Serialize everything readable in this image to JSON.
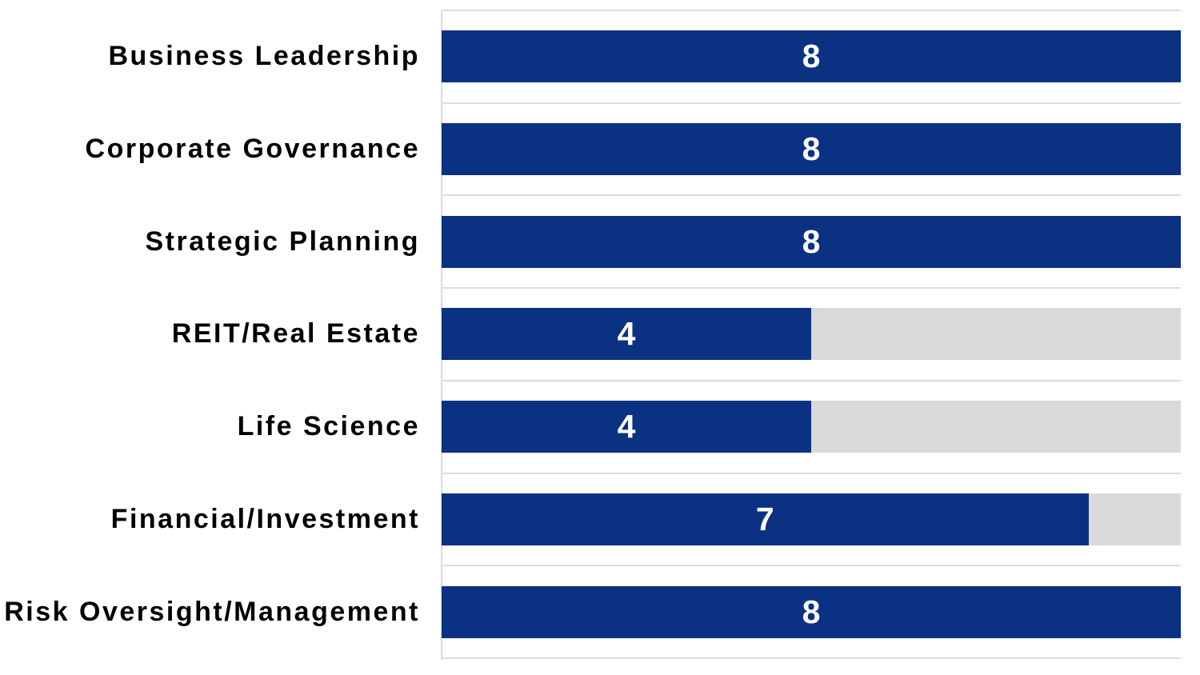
{
  "chart_data": {
    "type": "bar",
    "orientation": "horizontal",
    "title": "",
    "categories": [
      "Business Leadership",
      "Corporate Governance",
      "Strategic Planning",
      "REIT/Real Estate",
      "Life Science",
      "Financial/Investment",
      "Risk Oversight/Management"
    ],
    "values": [
      8,
      8,
      8,
      4,
      4,
      7,
      8
    ],
    "xlim": [
      0,
      8
    ],
    "xlabel": "",
    "ylabel": "",
    "legend": "none",
    "value_labels_position": "inside-center",
    "remainder_track": true,
    "grid": "horizontal-band-boundaries",
    "colors": {
      "bar": "#0B3183",
      "track": "#D9D9D9",
      "gridline": "#DCDCDC",
      "label": "#000000",
      "value_label": "#FFFFFF",
      "background": "#FFFFFF"
    }
  }
}
